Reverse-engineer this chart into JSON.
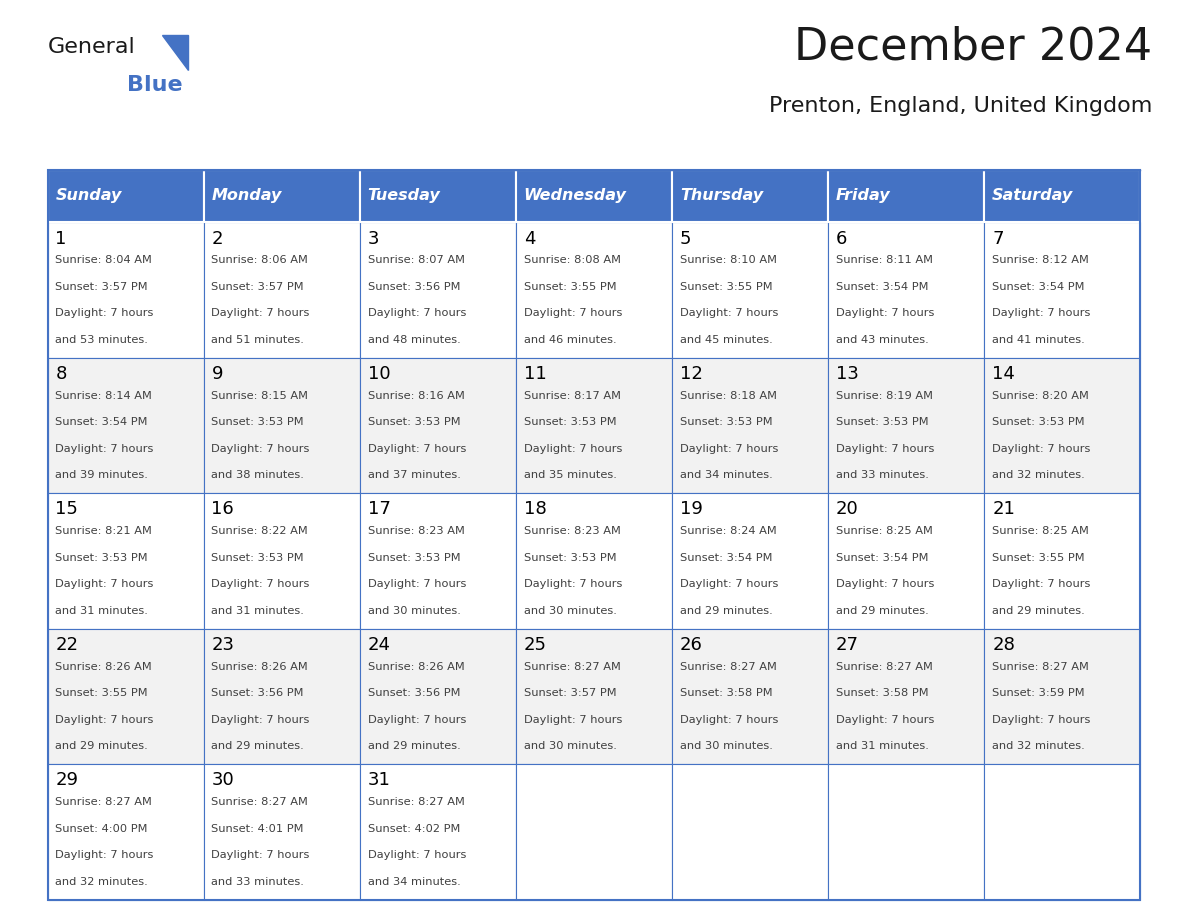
{
  "title": "December 2024",
  "subtitle": "Prenton, England, United Kingdom",
  "days_of_week": [
    "Sunday",
    "Monday",
    "Tuesday",
    "Wednesday",
    "Thursday",
    "Friday",
    "Saturday"
  ],
  "header_bg": "#4472C4",
  "header_text": "#FFFFFF",
  "cell_bg_even": "#FFFFFF",
  "cell_bg_odd": "#F2F2F2",
  "border_color": "#4472C4",
  "day_num_color": "#000000",
  "cell_text_color": "#404040",
  "title_color": "#1a1a1a",
  "subtitle_color": "#1a1a1a",
  "logo_general_color": "#1a1a1a",
  "logo_blue_color": "#4472C4",
  "calendar": [
    [
      {
        "day": 1,
        "sunrise": "8:04 AM",
        "sunset": "3:57 PM",
        "daylight": "7 hours and 53 minutes"
      },
      {
        "day": 2,
        "sunrise": "8:06 AM",
        "sunset": "3:57 PM",
        "daylight": "7 hours and 51 minutes"
      },
      {
        "day": 3,
        "sunrise": "8:07 AM",
        "sunset": "3:56 PM",
        "daylight": "7 hours and 48 minutes"
      },
      {
        "day": 4,
        "sunrise": "8:08 AM",
        "sunset": "3:55 PM",
        "daylight": "7 hours and 46 minutes"
      },
      {
        "day": 5,
        "sunrise": "8:10 AM",
        "sunset": "3:55 PM",
        "daylight": "7 hours and 45 minutes"
      },
      {
        "day": 6,
        "sunrise": "8:11 AM",
        "sunset": "3:54 PM",
        "daylight": "7 hours and 43 minutes"
      },
      {
        "day": 7,
        "sunrise": "8:12 AM",
        "sunset": "3:54 PM",
        "daylight": "7 hours and 41 minutes"
      }
    ],
    [
      {
        "day": 8,
        "sunrise": "8:14 AM",
        "sunset": "3:54 PM",
        "daylight": "7 hours and 39 minutes"
      },
      {
        "day": 9,
        "sunrise": "8:15 AM",
        "sunset": "3:53 PM",
        "daylight": "7 hours and 38 minutes"
      },
      {
        "day": 10,
        "sunrise": "8:16 AM",
        "sunset": "3:53 PM",
        "daylight": "7 hours and 37 minutes"
      },
      {
        "day": 11,
        "sunrise": "8:17 AM",
        "sunset": "3:53 PM",
        "daylight": "7 hours and 35 minutes"
      },
      {
        "day": 12,
        "sunrise": "8:18 AM",
        "sunset": "3:53 PM",
        "daylight": "7 hours and 34 minutes"
      },
      {
        "day": 13,
        "sunrise": "8:19 AM",
        "sunset": "3:53 PM",
        "daylight": "7 hours and 33 minutes"
      },
      {
        "day": 14,
        "sunrise": "8:20 AM",
        "sunset": "3:53 PM",
        "daylight": "7 hours and 32 minutes"
      }
    ],
    [
      {
        "day": 15,
        "sunrise": "8:21 AM",
        "sunset": "3:53 PM",
        "daylight": "7 hours and 31 minutes"
      },
      {
        "day": 16,
        "sunrise": "8:22 AM",
        "sunset": "3:53 PM",
        "daylight": "7 hours and 31 minutes"
      },
      {
        "day": 17,
        "sunrise": "8:23 AM",
        "sunset": "3:53 PM",
        "daylight": "7 hours and 30 minutes"
      },
      {
        "day": 18,
        "sunrise": "8:23 AM",
        "sunset": "3:53 PM",
        "daylight": "7 hours and 30 minutes"
      },
      {
        "day": 19,
        "sunrise": "8:24 AM",
        "sunset": "3:54 PM",
        "daylight": "7 hours and 29 minutes"
      },
      {
        "day": 20,
        "sunrise": "8:25 AM",
        "sunset": "3:54 PM",
        "daylight": "7 hours and 29 minutes"
      },
      {
        "day": 21,
        "sunrise": "8:25 AM",
        "sunset": "3:55 PM",
        "daylight": "7 hours and 29 minutes"
      }
    ],
    [
      {
        "day": 22,
        "sunrise": "8:26 AM",
        "sunset": "3:55 PM",
        "daylight": "7 hours and 29 minutes"
      },
      {
        "day": 23,
        "sunrise": "8:26 AM",
        "sunset": "3:56 PM",
        "daylight": "7 hours and 29 minutes"
      },
      {
        "day": 24,
        "sunrise": "8:26 AM",
        "sunset": "3:56 PM",
        "daylight": "7 hours and 29 minutes"
      },
      {
        "day": 25,
        "sunrise": "8:27 AM",
        "sunset": "3:57 PM",
        "daylight": "7 hours and 30 minutes"
      },
      {
        "day": 26,
        "sunrise": "8:27 AM",
        "sunset": "3:58 PM",
        "daylight": "7 hours and 30 minutes"
      },
      {
        "day": 27,
        "sunrise": "8:27 AM",
        "sunset": "3:58 PM",
        "daylight": "7 hours and 31 minutes"
      },
      {
        "day": 28,
        "sunrise": "8:27 AM",
        "sunset": "3:59 PM",
        "daylight": "7 hours and 32 minutes"
      }
    ],
    [
      {
        "day": 29,
        "sunrise": "8:27 AM",
        "sunset": "4:00 PM",
        "daylight": "7 hours and 32 minutes"
      },
      {
        "day": 30,
        "sunrise": "8:27 AM",
        "sunset": "4:01 PM",
        "daylight": "7 hours and 33 minutes"
      },
      {
        "day": 31,
        "sunrise": "8:27 AM",
        "sunset": "4:02 PM",
        "daylight": "7 hours and 34 minutes"
      },
      null,
      null,
      null,
      null
    ]
  ]
}
